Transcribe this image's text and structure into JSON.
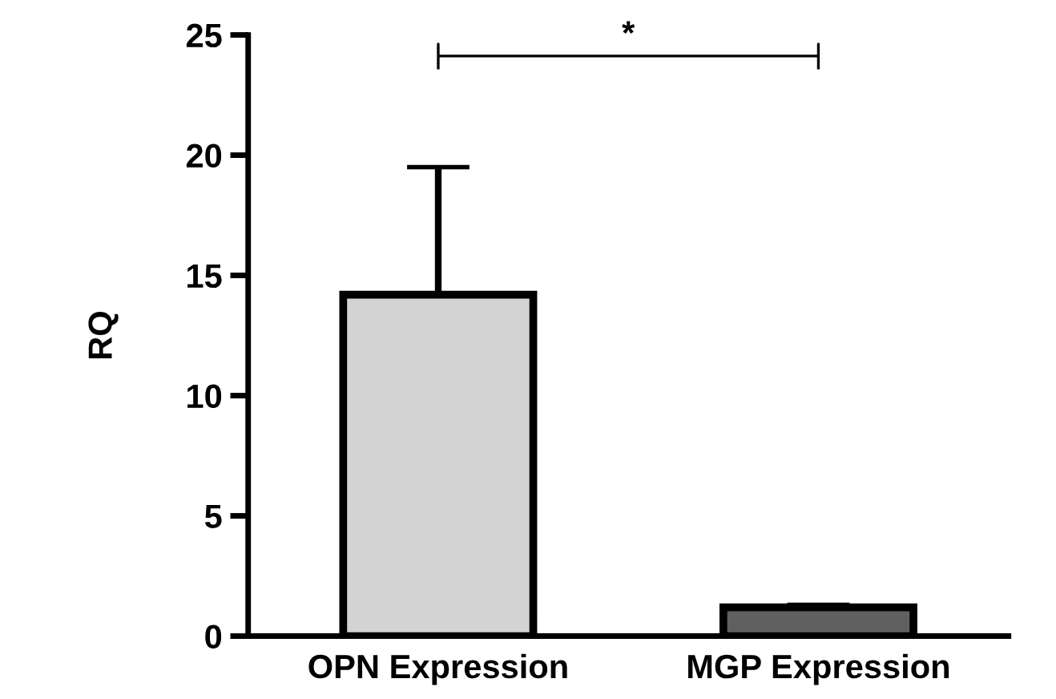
{
  "chart_data": {
    "type": "bar",
    "ylabel": "RQ",
    "categories": [
      "OPN Expression",
      "MGP Expression"
    ],
    "values": [
      14.2,
      1.2
    ],
    "colors": [
      "#d3d3d3",
      "#606060"
    ],
    "errors": [
      [
        14.2,
        19.5
      ],
      [
        1.2,
        1.3
      ]
    ],
    "ylim": [
      0,
      25
    ],
    "yticks": [
      0,
      5,
      10,
      15,
      20,
      25
    ],
    "grid": false,
    "annotations": [
      "*"
    ]
  }
}
